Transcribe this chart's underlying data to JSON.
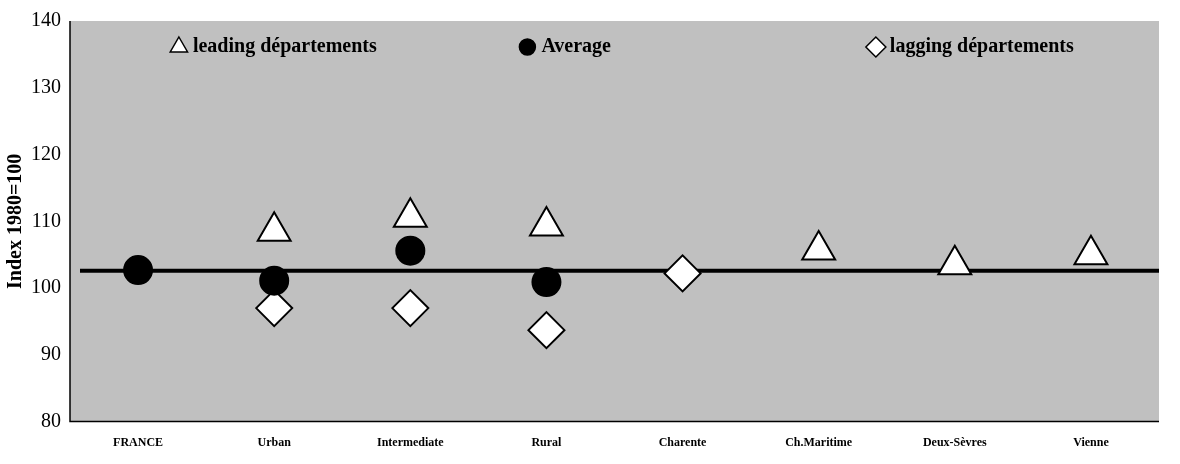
{
  "chart_data": {
    "type": "scatter",
    "ylabel": "Index 1980=100",
    "categories": [
      "FRANCE",
      "Urban",
      "Intermediate",
      "Rural",
      "Charente",
      "Ch.Maritime",
      "Deux-Sèvres",
      "Vienne"
    ],
    "series": [
      {
        "name": "leading départements",
        "color": "#ffffff",
        "marker": "triangle",
        "values": [
          null,
          108.5,
          110.6,
          109.3,
          null,
          105.7,
          103.5,
          105.0
        ]
      },
      {
        "name": "Average",
        "color": "#000000",
        "marker": "circle",
        "values": [
          102.7,
          101.1,
          105.6,
          100.9,
          null,
          null,
          null,
          null
        ]
      },
      {
        "name": "lagging départements",
        "color": "#ffffff",
        "marker": "diamond",
        "values": [
          null,
          97.0,
          97.0,
          93.7,
          102.2,
          null,
          null,
          null
        ]
      }
    ],
    "ylim": [
      80,
      140
    ],
    "yticks": [
      80,
      90,
      100,
      110,
      120,
      130,
      140
    ],
    "ref_lines": [
      {
        "axis": "y",
        "value": 102.6,
        "color": "#000000"
      }
    ],
    "grid": false,
    "legend": "top"
  }
}
